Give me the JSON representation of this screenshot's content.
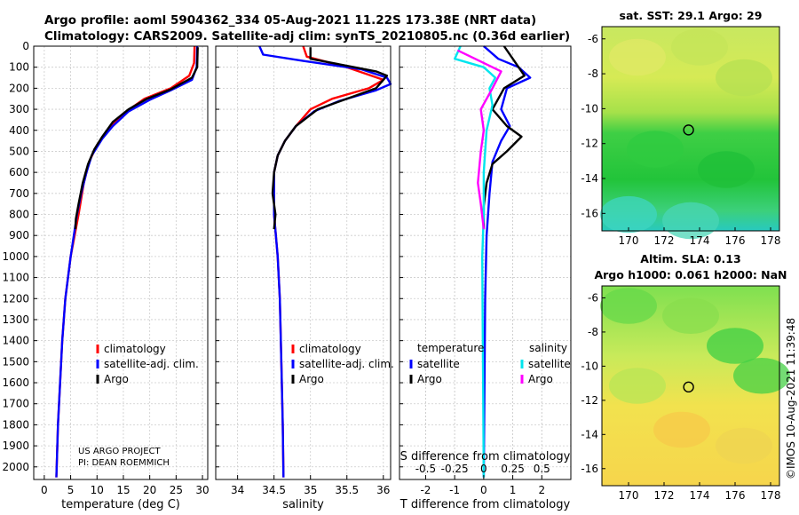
{
  "titles": {
    "line1": "Argo profile: aoml 5904362_334 05-Aug-2021 11.22S 173.38E (NRT data)",
    "line2": "Climatology: CARS2009. Satellite-adj clim: synTS_20210805.nc (0.36d earlier)"
  },
  "project": {
    "line1": "US ARGO PROJECT",
    "line2": "PI: DEAN ROEMMICH"
  },
  "timestamp": "©IMOS 10-Aug-2021 11:39:48",
  "colors": {
    "climatology": "#ff0000",
    "satellite": "#0000ff",
    "argo": "#000000",
    "s_satellite": "#00e5ee",
    "s_argo": "#ff00ff",
    "grid": "#cccccc"
  },
  "chart_data": [
    {
      "type": "line",
      "name": "temperature-profile",
      "xlabel": "temperature (deg C)",
      "ylabel": "",
      "xlim": [
        -2,
        31
      ],
      "ylim": [
        2060,
        0
      ],
      "xticks": [
        0,
        5,
        10,
        15,
        20,
        25,
        30
      ],
      "yticks": [
        0,
        100,
        200,
        300,
        400,
        500,
        600,
        700,
        800,
        900,
        1000,
        1100,
        1200,
        1300,
        1400,
        1500,
        1600,
        1700,
        1800,
        1900,
        2000
      ],
      "legend": {
        "position": "lower-right",
        "entries": [
          "climatology",
          "satellite-adj. clim.",
          "Argo"
        ]
      },
      "series": [
        {
          "name": "climatology",
          "color": "#ff0000",
          "points": [
            [
              28.5,
              0
            ],
            [
              28.4,
              80
            ],
            [
              27.5,
              140
            ],
            [
              24,
              200
            ],
            [
              19,
              250
            ],
            [
              15,
              320
            ],
            [
              12,
              400
            ],
            [
              10,
              470
            ],
            [
              8.5,
              550
            ],
            [
              7.5,
              650
            ],
            [
              6.5,
              800
            ],
            [
              5,
              1000
            ],
            [
              4,
              1200
            ],
            [
              3.4,
              1400
            ],
            [
              3,
              1600
            ],
            [
              2.6,
              1800
            ],
            [
              2.3,
              2050
            ]
          ]
        },
        {
          "name": "satellite-adj. clim.",
          "color": "#0000ff",
          "points": [
            [
              29,
              0
            ],
            [
              28.9,
              100
            ],
            [
              28,
              160
            ],
            [
              24,
              210
            ],
            [
              20,
              255
            ],
            [
              16,
              310
            ],
            [
              13,
              380
            ],
            [
              11,
              440
            ],
            [
              9,
              520
            ],
            [
              8,
              600
            ],
            [
              7,
              700
            ],
            [
              6.2,
              800
            ],
            [
              5,
              1000
            ],
            [
              4,
              1200
            ],
            [
              3.4,
              1400
            ],
            [
              3,
              1600
            ],
            [
              2.6,
              1800
            ],
            [
              2.3,
              2050
            ]
          ]
        },
        {
          "name": "Argo",
          "color": "#000000",
          "points": [
            [
              29.1,
              5
            ],
            [
              29,
              100
            ],
            [
              28,
              150
            ],
            [
              24,
              205
            ],
            [
              19.5,
              250
            ],
            [
              16,
              300
            ],
            [
              13,
              360
            ],
            [
              11,
              430
            ],
            [
              9.5,
              490
            ],
            [
              8.3,
              560
            ],
            [
              7.3,
              650
            ],
            [
              6.5,
              750
            ],
            [
              6,
              820
            ],
            [
              5.9,
              870
            ]
          ]
        }
      ]
    },
    {
      "type": "line",
      "name": "salinity-profile",
      "xlabel": "salinity",
      "ylabel": "",
      "xlim": [
        33.7,
        36.1
      ],
      "ylim": [
        2060,
        0
      ],
      "xticks": [
        34,
        34.5,
        35,
        35.5,
        36
      ],
      "xticklabels": [
        "34",
        "34.5",
        "35",
        "35.5",
        "36"
      ],
      "legend": {
        "position": "lower-right",
        "entries": [
          "climatology",
          "satellite-adj. clim.",
          "Argo"
        ]
      },
      "series": [
        {
          "name": "climatology",
          "color": "#ff0000",
          "points": [
            [
              34.9,
              0
            ],
            [
              34.95,
              50
            ],
            [
              35.5,
              100
            ],
            [
              36,
              160
            ],
            [
              35.8,
              200
            ],
            [
              35.3,
              250
            ],
            [
              35,
              300
            ],
            [
              34.8,
              380
            ],
            [
              34.65,
              450
            ],
            [
              34.55,
              520
            ],
            [
              34.5,
              600
            ],
            [
              34.5,
              800
            ],
            [
              34.55,
              1000
            ],
            [
              34.58,
              1200
            ],
            [
              34.6,
              1500
            ],
            [
              34.62,
              1800
            ],
            [
              34.63,
              2050
            ]
          ]
        },
        {
          "name": "satellite-adj. clim.",
          "color": "#0000ff",
          "points": [
            [
              34.3,
              0
            ],
            [
              34.35,
              40
            ],
            [
              34.9,
              70
            ],
            [
              35.7,
              110
            ],
            [
              36.05,
              150
            ],
            [
              36.1,
              180
            ],
            [
              35.9,
              210
            ],
            [
              35.4,
              260
            ],
            [
              35.05,
              310
            ],
            [
              34.8,
              380
            ],
            [
              34.65,
              450
            ],
            [
              34.55,
              520
            ],
            [
              34.5,
              600
            ],
            [
              34.5,
              800
            ],
            [
              34.55,
              1000
            ],
            [
              34.58,
              1200
            ],
            [
              34.6,
              1500
            ],
            [
              34.62,
              1800
            ],
            [
              34.63,
              2050
            ]
          ]
        },
        {
          "name": "Argo",
          "color": "#000000",
          "points": [
            [
              35,
              5
            ],
            [
              35,
              60
            ],
            [
              35.9,
              120
            ],
            [
              36.05,
              140
            ],
            [
              35.9,
              200
            ],
            [
              35.5,
              250
            ],
            [
              35.1,
              300
            ],
            [
              34.8,
              380
            ],
            [
              34.65,
              450
            ],
            [
              34.55,
              520
            ],
            [
              34.5,
              600
            ],
            [
              34.48,
              700
            ],
            [
              34.52,
              800
            ],
            [
              34.5,
              870
            ]
          ]
        }
      ]
    },
    {
      "type": "line",
      "name": "difference-profile",
      "xlabel": "T difference from climatology",
      "x2label": "S difference from climatology",
      "xlim": [
        -2.9,
        3
      ],
      "ylim": [
        2060,
        0
      ],
      "xticks": [
        -2,
        -1,
        0,
        1,
        2
      ],
      "x2ticks": [
        -0.5,
        -0.25,
        0,
        0.25,
        0.5
      ],
      "x2ticklabels": [
        "-0.5",
        "-0.25",
        "0",
        "0.25",
        "0.5"
      ],
      "legend_left": {
        "title": "temperature",
        "entries": [
          "satellite",
          "Argo"
        ]
      },
      "legend_right": {
        "title": "salinity",
        "entries": [
          "satellite",
          "Argo"
        ]
      },
      "series": [
        {
          "name": "T satellite",
          "color": "#0000ff",
          "points": [
            [
              0,
              0
            ],
            [
              0.5,
              60
            ],
            [
              1.2,
              100
            ],
            [
              1.6,
              150
            ],
            [
              0.8,
              200
            ],
            [
              0.6,
              300
            ],
            [
              0.9,
              380
            ],
            [
              0.6,
              450
            ],
            [
              0.3,
              550
            ],
            [
              0.2,
              700
            ],
            [
              0.1,
              900
            ],
            [
              0.05,
              1200
            ],
            [
              0,
              2050
            ]
          ]
        },
        {
          "name": "T Argo",
          "color": "#000000",
          "points": [
            [
              0.7,
              0
            ],
            [
              1,
              60
            ],
            [
              1.4,
              140
            ],
            [
              0.7,
              200
            ],
            [
              0.3,
              300
            ],
            [
              0.8,
              380
            ],
            [
              1.3,
              430
            ],
            [
              0.8,
              500
            ],
            [
              0.3,
              560
            ],
            [
              0.1,
              650
            ],
            [
              0,
              760
            ],
            [
              0,
              870
            ]
          ]
        },
        {
          "name": "S satellite",
          "color": "#00e5ee",
          "points": [
            [
              -0.8,
              0
            ],
            [
              -1,
              60
            ],
            [
              0,
              100
            ],
            [
              0.4,
              150
            ],
            [
              0.2,
              200
            ],
            [
              0.3,
              280
            ],
            [
              0.1,
              400
            ],
            [
              0,
              600
            ],
            [
              0,
              800
            ],
            [
              -0.05,
              1000
            ],
            [
              0,
              2050
            ]
          ]
        },
        {
          "name": "S Argo",
          "color": "#ff00ff",
          "points": [
            [
              -0.9,
              20
            ],
            [
              -0.3,
              60
            ],
            [
              0.6,
              120
            ],
            [
              0.3,
              200
            ],
            [
              -0.1,
              300
            ],
            [
              0,
              400
            ],
            [
              -0.1,
              500
            ],
            [
              -0.2,
              650
            ],
            [
              -0.1,
              750
            ],
            [
              0,
              870
            ]
          ]
        }
      ]
    },
    {
      "type": "heatmap",
      "name": "sst-map",
      "title": "sat. SST: 29.1 Argo: 29",
      "xlim": [
        168.5,
        178.5
      ],
      "ylim": [
        -17,
        -5.3
      ],
      "xticks": [
        170,
        172,
        174,
        176,
        178
      ],
      "yticks": [
        -16,
        -14,
        -12,
        -10,
        -8,
        -6
      ],
      "marker": {
        "lon": 173.38,
        "lat": -11.22
      }
    },
    {
      "type": "heatmap",
      "name": "sla-map",
      "title1": "Altim. SLA: 0.13",
      "title2": "Argo h1000: 0.061 h2000: NaN",
      "xlim": [
        168.5,
        178.5
      ],
      "ylim": [
        -17,
        -5.3
      ],
      "xticks": [
        170,
        172,
        174,
        176,
        178
      ],
      "yticks": [
        -16,
        -14,
        -12,
        -10,
        -8,
        -6
      ],
      "marker": {
        "lon": 173.38,
        "lat": -11.22
      }
    }
  ]
}
